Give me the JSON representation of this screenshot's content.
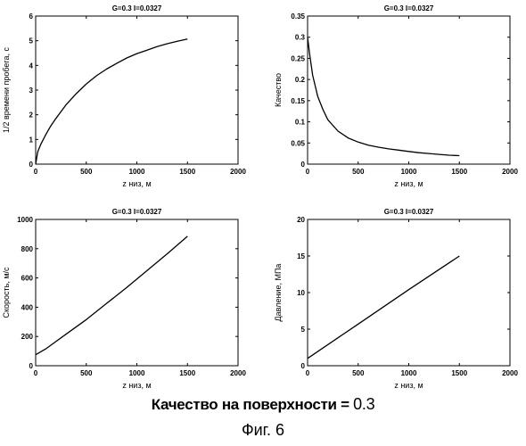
{
  "chart_data": [
    {
      "type": "line",
      "title": "G=0.3   I=0.0327",
      "xlabel": "z низ, м",
      "ylabel": "1/2 времени пробега, с",
      "xlim": [
        0,
        2000
      ],
      "ylim": [
        0,
        6
      ],
      "xticks": [
        "0",
        "500",
        "1000",
        "1500",
        "2000"
      ],
      "yticks": [
        "0",
        "1",
        "2",
        "3",
        "4",
        "5",
        "6"
      ],
      "grid": false,
      "series": [
        {
          "x": [
            0,
            20,
            50,
            100,
            150,
            200,
            300,
            400,
            500,
            600,
            700,
            800,
            900,
            1000,
            1100,
            1200,
            1300,
            1400,
            1500
          ],
          "values": [
            0,
            0.5,
            0.8,
            1.2,
            1.55,
            1.85,
            2.4,
            2.85,
            3.25,
            3.58,
            3.85,
            4.08,
            4.3,
            4.48,
            4.62,
            4.76,
            4.88,
            4.98,
            5.07
          ]
        }
      ]
    },
    {
      "type": "line",
      "title": "G=0.3   I=0.0327",
      "xlabel": "z низ, м",
      "ylabel": "Качество",
      "xlim": [
        0,
        2000
      ],
      "ylim": [
        0,
        0.35
      ],
      "xticks": [
        "0",
        "500",
        "1000",
        "1500",
        "2000"
      ],
      "yticks": [
        "0",
        "0.05",
        "0.1",
        "0.15",
        "0.2",
        "0.25",
        "0.3",
        "0.35"
      ],
      "grid": false,
      "series": [
        {
          "x": [
            0,
            20,
            50,
            100,
            150,
            200,
            300,
            400,
            500,
            600,
            700,
            800,
            900,
            1000,
            1100,
            1200,
            1300,
            1400,
            1500
          ],
          "values": [
            0.3,
            0.26,
            0.21,
            0.16,
            0.13,
            0.105,
            0.078,
            0.062,
            0.052,
            0.045,
            0.04,
            0.036,
            0.033,
            0.03,
            0.027,
            0.025,
            0.023,
            0.021,
            0.02
          ]
        }
      ]
    },
    {
      "type": "line",
      "title": "G=0.3   I=0.0327",
      "xlabel": "z низ, м",
      "ylabel": "Скорость, м/с",
      "xlim": [
        0,
        2000
      ],
      "ylim": [
        0,
        1000
      ],
      "xticks": [
        "0",
        "500",
        "1000",
        "1500",
        "2000"
      ],
      "yticks": [
        "0",
        "200",
        "400",
        "600",
        "800",
        "1000"
      ],
      "grid": false,
      "series": [
        {
          "x": [
            0,
            100,
            200,
            300,
            500,
            700,
            900,
            1100,
            1300,
            1500
          ],
          "values": [
            75,
            115,
            165,
            215,
            315,
            425,
            535,
            650,
            765,
            885
          ]
        }
      ]
    },
    {
      "type": "line",
      "title": "G=0.3   I=0.0327",
      "xlabel": "z низ, м",
      "ylabel": "Давление, МПа",
      "xlim": [
        0,
        2000
      ],
      "ylim": [
        0,
        20
      ],
      "xticks": [
        "0",
        "500",
        "1000",
        "1500",
        "2000"
      ],
      "yticks": [
        "0",
        "5",
        "10",
        "15",
        "20"
      ],
      "grid": false,
      "series": [
        {
          "x": [
            0,
            500,
            1000,
            1500
          ],
          "values": [
            1,
            5.7,
            10.4,
            15
          ]
        }
      ]
    }
  ],
  "caption": {
    "label": "Качество на поверхности =",
    "value": "0.3"
  },
  "figure_number": "Фиг. 6"
}
